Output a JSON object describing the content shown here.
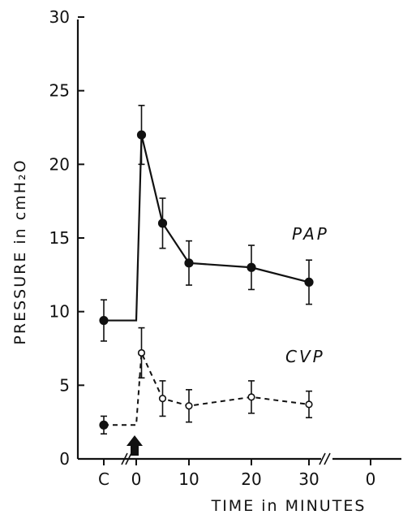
{
  "chart_data": {
    "type": "line",
    "title": "",
    "xlabel": "TIME in MINUTES",
    "ylabel": "PRESSURE in cmH₂O",
    "ylim": [
      0,
      30
    ],
    "y_ticks": [
      "0",
      "5",
      "10",
      "15",
      "20",
      "25",
      "30"
    ],
    "x_tick_labels": [
      "C",
      "0",
      "10",
      "20",
      "30",
      "0"
    ],
    "x_axis_breaks": [
      "between C and 0",
      "after 30"
    ],
    "grid": false,
    "injection_marker": "arrow-up-icon at time 0",
    "series": [
      {
        "name": "PAP",
        "style": "solid",
        "marker": "filled-circle",
        "points": [
          {
            "x": "C",
            "y": 9.4,
            "err": 1.4
          },
          {
            "x": 1,
            "y": 22.0,
            "err": 2.0
          },
          {
            "x": 5,
            "y": 16.0,
            "err": 1.7
          },
          {
            "x": 10,
            "y": 13.3,
            "err": 1.5
          },
          {
            "x": 20,
            "y": 13.0,
            "err": 1.5
          },
          {
            "x": 30,
            "y": 12.0,
            "err": 1.5
          }
        ]
      },
      {
        "name": "CVP",
        "style": "dashed",
        "marker": "open-circle",
        "points": [
          {
            "x": "C",
            "y": 2.3,
            "err": 0.6
          },
          {
            "x": 1,
            "y": 7.2,
            "err": 1.7
          },
          {
            "x": 5,
            "y": 4.1,
            "err": 1.2
          },
          {
            "x": 10,
            "y": 3.6,
            "err": 1.1
          },
          {
            "x": 20,
            "y": 4.2,
            "err": 1.1
          },
          {
            "x": 30,
            "y": 3.7,
            "err": 0.9
          }
        ]
      }
    ]
  }
}
